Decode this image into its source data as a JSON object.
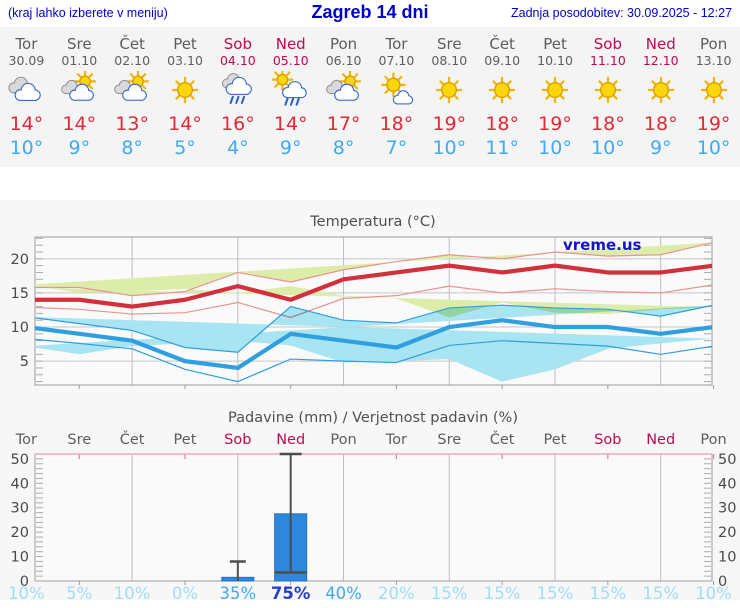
{
  "page": {
    "title_left": "(kraj lahko izberete v meniju)",
    "title": "Zagreb 14 dni",
    "updated": "Zadnja posodobitev: 30.09.2025 - 12:27"
  },
  "colors": {
    "header_blue": "#0000cd",
    "day_gray": "#5d5d5f",
    "weekend_red": "#bf0a52",
    "tmax_red": "#e02b35",
    "tmin_blue": "#41aaf2",
    "warm_band_fill": "#dcedaa",
    "warm_band_edge": "#e8948c",
    "cold_band_fill": "#a9e4f3",
    "line_warm": "#d2303c",
    "line_cold": "#2f9fe0",
    "bar_blue": "#2e87dd",
    "bar_edge": "#1f6fc4",
    "whisker": "#4d4d4d",
    "grid": "#c6c6c6",
    "axis": "#9c9ca0",
    "minor_tick": "#ababab",
    "tick_text": "#4a4a4a",
    "chart_title": "#4f4f4f",
    "pink_frame": "#eeaabc",
    "pink_tick": "#e87c9a",
    "watermark_blue": "#1414cc",
    "prob_low": "#9edef6",
    "prob_mid": "#43a9e8",
    "prob_high": "#2540cc"
  },
  "forecast": {
    "days": [
      {
        "name": "Tor",
        "date": "30.09",
        "weekend": false,
        "icon": "cloudy",
        "tmax": "14°",
        "tmin": "10°"
      },
      {
        "name": "Sre",
        "date": "01.10",
        "weekend": false,
        "icon": "partly-sunny",
        "tmax": "14°",
        "tmin": "9°"
      },
      {
        "name": "Čet",
        "date": "02.10",
        "weekend": false,
        "icon": "partly-sunny",
        "tmax": "13°",
        "tmin": "8°"
      },
      {
        "name": "Pet",
        "date": "03.10",
        "weekend": false,
        "icon": "sunny",
        "tmax": "14°",
        "tmin": "5°"
      },
      {
        "name": "Sob",
        "date": "04.10",
        "weekend": true,
        "icon": "rain",
        "tmax": "16°",
        "tmin": "4°"
      },
      {
        "name": "Ned",
        "date": "05.10",
        "weekend": true,
        "icon": "sun-rain",
        "tmax": "14°",
        "tmin": "9°"
      },
      {
        "name": "Pon",
        "date": "06.10",
        "weekend": false,
        "icon": "partly-sunny",
        "tmax": "17°",
        "tmin": "8°"
      },
      {
        "name": "Tor",
        "date": "07.10",
        "weekend": false,
        "icon": "mostly-sunny",
        "tmax": "18°",
        "tmin": "7°"
      },
      {
        "name": "Sre",
        "date": "08.10",
        "weekend": false,
        "icon": "sunny",
        "tmax": "19°",
        "tmin": "10°"
      },
      {
        "name": "Čet",
        "date": "09.10",
        "weekend": false,
        "icon": "sunny",
        "tmax": "18°",
        "tmin": "11°"
      },
      {
        "name": "Pet",
        "date": "10.10",
        "weekend": false,
        "icon": "sunny",
        "tmax": "19°",
        "tmin": "10°"
      },
      {
        "name": "Sob",
        "date": "11.10",
        "weekend": true,
        "icon": "sunny",
        "tmax": "18°",
        "tmin": "10°"
      },
      {
        "name": "Ned",
        "date": "12.10",
        "weekend": true,
        "icon": "sunny",
        "tmax": "18°",
        "tmin": "9°"
      },
      {
        "name": "Pon",
        "date": "13.10",
        "weekend": false,
        "icon": "sunny",
        "tmax": "19°",
        "tmin": "10°"
      }
    ]
  },
  "chart_data": [
    {
      "type": "line",
      "title": "Temperatura (°C)",
      "watermark": "vreme.us",
      "ylim": [
        1.5,
        23.2
      ],
      "yticks": [
        5,
        10,
        15,
        20
      ],
      "grid": true,
      "categories": [
        "Tor",
        "Sre",
        "Čet",
        "Pet",
        "Sob",
        "Ned",
        "Pon",
        "Tor",
        "Sre",
        "Čet",
        "Pet",
        "Sob",
        "Ned",
        "Pon"
      ],
      "series": [
        {
          "name": "t_max",
          "values": [
            14,
            14,
            13,
            14,
            16,
            14,
            17,
            18,
            19,
            18,
            19,
            18,
            18,
            19
          ]
        },
        {
          "name": "t_min",
          "values": [
            10,
            9,
            8,
            5,
            4,
            9,
            8,
            7,
            10,
            11,
            10,
            10,
            9,
            10
          ]
        },
        {
          "name": "t_max_band_upper",
          "values": [
            15.8,
            15.8,
            14.6,
            15.2,
            18.0,
            16.6,
            18.4,
            19.6,
            20.6,
            20.0,
            21.0,
            20.4,
            20.6,
            22.4
          ]
        },
        {
          "name": "t_max_band_lower",
          "values": [
            12.9,
            12.6,
            11.9,
            12.1,
            13.6,
            11.4,
            14.2,
            14.6,
            16.0,
            15.0,
            15.6,
            15.2,
            15.0,
            16.2
          ]
        },
        {
          "name": "t_min_band_upper",
          "values": [
            11.5,
            10.5,
            9.5,
            7.0,
            6.3,
            13.0,
            11.0,
            10.6,
            12.8,
            13.2,
            12.8,
            12.6,
            11.6,
            13.2
          ]
        },
        {
          "name": "t_min_band_lower",
          "values": [
            8.3,
            7.6,
            6.8,
            3.8,
            2.0,
            5.3,
            5.0,
            4.8,
            7.3,
            8.0,
            7.6,
            7.2,
            6.0,
            7.2
          ]
        }
      ]
    },
    {
      "type": "bar",
      "title": "Padavine (mm) / Verjetnost padavin (%)",
      "categories": [
        "Tor",
        "Sre",
        "Čet",
        "Pet",
        "Sob",
        "Ned",
        "Pon",
        "Tor",
        "Sre",
        "Čet",
        "Pet",
        "Sob",
        "Ned",
        "Pon"
      ],
      "values": [
        0,
        0,
        0,
        0,
        1.5,
        27.5,
        0,
        0,
        0,
        0,
        0,
        0,
        0,
        0
      ],
      "whisker_high": [
        null,
        null,
        null,
        null,
        8,
        52,
        null,
        null,
        null,
        null,
        null,
        null,
        null,
        null
      ],
      "whisker_low": [
        null,
        null,
        null,
        null,
        0,
        3.5,
        null,
        null,
        null,
        null,
        null,
        null,
        null,
        null
      ],
      "probabilities_pct": [
        10,
        5,
        10,
        0,
        35,
        75,
        40,
        20,
        15,
        15,
        15,
        15,
        15,
        10
      ],
      "yticks": [
        0,
        10,
        20,
        30,
        40,
        50
      ],
      "ylim": [
        0,
        52
      ]
    }
  ]
}
